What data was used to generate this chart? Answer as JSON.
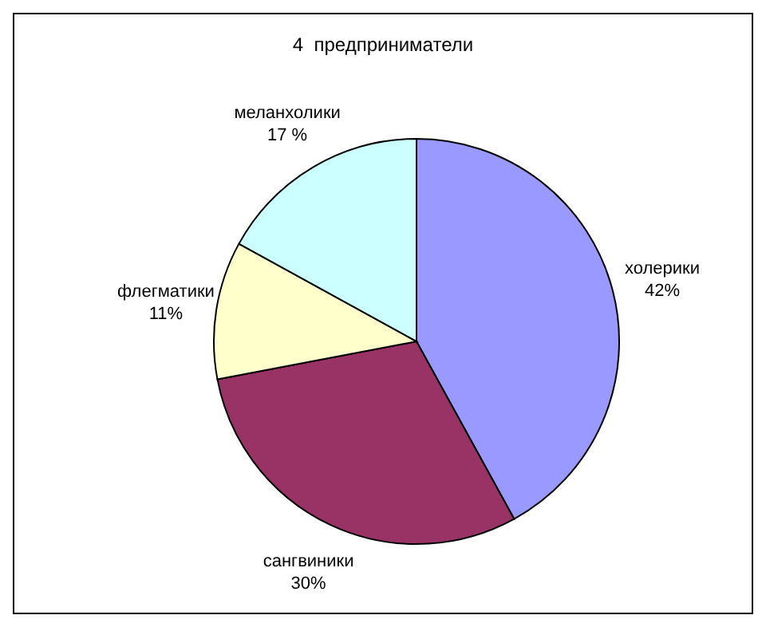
{
  "chart_data": {
    "type": "pie",
    "title": "4  предприниматели",
    "categories": [
      "холерики",
      "сангвиники",
      "флегматики",
      "меланхолики"
    ],
    "values": [
      42,
      30,
      11,
      17
    ],
    "value_labels": [
      "42%",
      "30%",
      "11%",
      "17 %"
    ],
    "colors": [
      "#9999ff",
      "#993366",
      "#ffffcc",
      "#ccffff"
    ],
    "legend": false
  }
}
